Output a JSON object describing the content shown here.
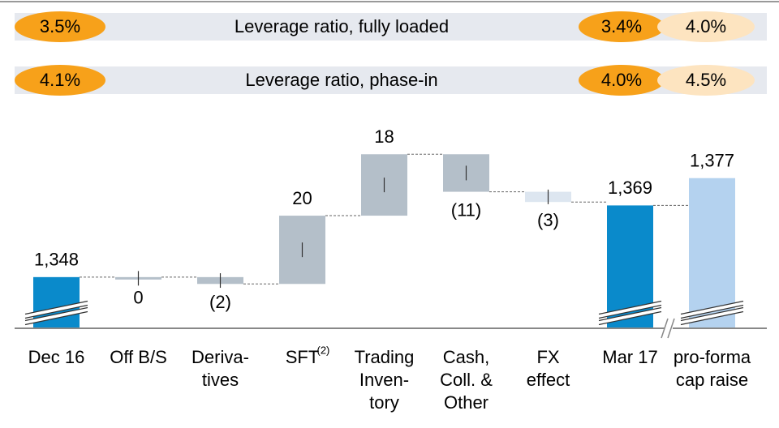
{
  "ratio_rows": [
    {
      "label": "Leverage ratio, fully loaded",
      "start": "3.5%",
      "end": "3.4%",
      "pro_forma": "4.0%"
    },
    {
      "label": "Leverage ratio, phase-in",
      "start": "4.1%",
      "end": "4.0%",
      "pro_forma": "4.5%"
    }
  ],
  "chart_data": {
    "type": "waterfall",
    "categories": [
      [
        "Dec 16"
      ],
      [
        "Off B/S"
      ],
      [
        "Deriva-",
        "tives"
      ],
      [
        "SFT"
      ],
      [
        "Trading",
        "Inven-",
        "tory"
      ],
      [
        "Cash,",
        "Coll. &",
        "Other"
      ],
      [
        "FX",
        "effect"
      ],
      [
        "Mar 17"
      ],
      [
        "pro-forma",
        "cap raise"
      ]
    ],
    "category_notes": [
      {
        "category": 3,
        "text": "(2)"
      }
    ],
    "values": [
      1348,
      0,
      -2,
      20,
      18,
      -11,
      -3,
      1369,
      1377
    ],
    "value_labels": [
      "1,348",
      "0",
      "(2)",
      "20",
      "18",
      "(11)",
      "(3)",
      "1,369",
      "1,377"
    ],
    "measures": [
      "absolute",
      "relative",
      "relative",
      "relative",
      "relative",
      "relative",
      "relative",
      "absolute",
      "absolute"
    ],
    "colors": [
      "#0a8acb",
      "#b4bfc9",
      "#b4bfc9",
      "#b4bfc9",
      "#b4bfc9",
      "#b4bfc9",
      "#dde6f0",
      "#0a8acb",
      "#b4d2ef"
    ],
    "ylim": [
      1333,
      1390
    ],
    "axis_break": true
  }
}
